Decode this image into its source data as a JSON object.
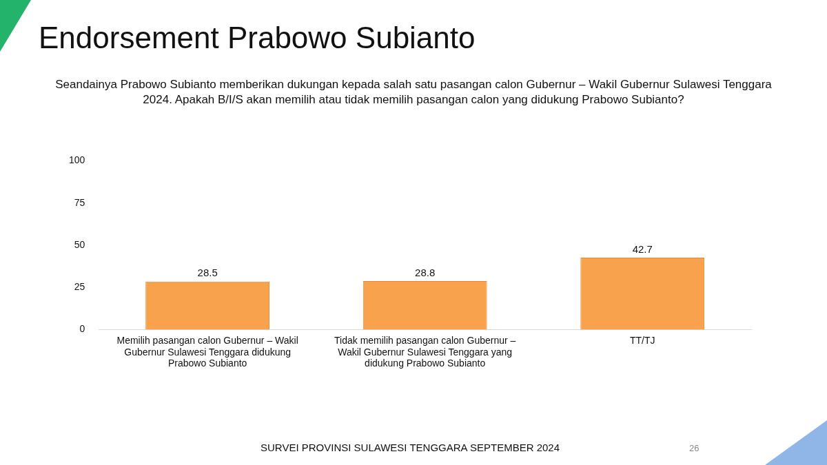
{
  "chart_data": {
    "type": "bar",
    "title": "Endorsement Prabowo Subianto",
    "subtitle": "Seandainya Prabowo Subianto memberikan dukungan kepada salah satu pasangan calon Gubernur – Wakil Gubernur Sulawesi Tenggara 2024. Apakah B/I/S akan memilih atau tidak memilih pasangan calon yang didukung Prabowo Subianto?",
    "categories": [
      "Memilih pasangan calon Gubernur – Wakil Gubernur Sulawesi Tenggara didukung Prabowo Subianto",
      "Tidak memilih pasangan calon Gubernur – Wakil Gubernur Sulawesi Tenggara yang didukung Prabowo Subianto",
      "TT/TJ"
    ],
    "values": [
      28.5,
      28.8,
      42.7
    ],
    "color": "#f8a24d",
    "ylim": [
      0,
      100
    ],
    "yticks": [
      0,
      25,
      50,
      75,
      100
    ],
    "grid": false,
    "legend": false,
    "data_labels": true,
    "annotations": [
      "SURVEI PROVINSI SULAWESI TENGGARA SEPTEMBER 2024",
      "26"
    ]
  }
}
